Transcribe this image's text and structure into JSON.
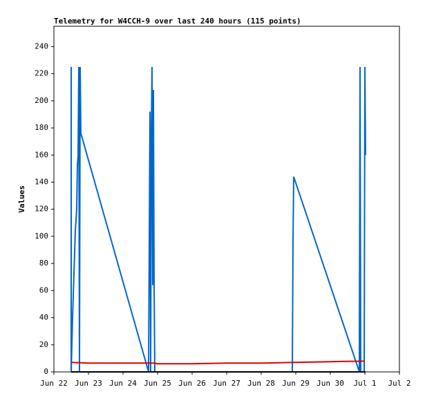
{
  "chart_data": {
    "type": "line",
    "title": "Telemetry for W4CCH-9 over last 240 hours (115 points)",
    "y_label": "Values",
    "xlim": [
      0,
      10
    ],
    "xticks": [
      {
        "value": 0,
        "label": "Jun 22"
      },
      {
        "value": 1,
        "label": "Jun 23"
      },
      {
        "value": 2,
        "label": "Jun 24"
      },
      {
        "value": 3,
        "label": "Jun 25"
      },
      {
        "value": 4,
        "label": "Jun 26"
      },
      {
        "value": 5,
        "label": "Jun 27"
      },
      {
        "value": 6,
        "label": "Jun 28"
      },
      {
        "value": 7,
        "label": "Jun 29"
      },
      {
        "value": 8,
        "label": "Jun 30"
      },
      {
        "value": 9,
        "label": "Jul 1"
      },
      {
        "value": 10,
        "label": "Jul 2"
      }
    ],
    "ylim": [
      0,
      255
    ],
    "yticks": [
      0,
      20,
      40,
      60,
      80,
      100,
      120,
      140,
      160,
      180,
      200,
      220,
      240
    ],
    "series": [
      {
        "color": "#0066cc",
        "x": [
          0.5,
          0.5,
          0.5,
          0.5,
          0.54,
          0.58,
          0.62,
          0.66,
          0.68,
          0.7,
          0.72,
          0.74,
          0.76,
          0.78,
          2.74,
          2.78,
          2.8,
          2.82,
          2.84,
          2.86,
          2.88,
          2.9,
          2.92,
          6.9,
          6.92,
          6.94,
          8.84,
          8.86,
          8.88,
          8.98,
          9.0,
          9.02
        ],
        "values": [
          0,
          17,
          225,
          0,
          40,
          72,
          104,
          120,
          152,
          160,
          225,
          0,
          225,
          176,
          0,
          192,
          0,
          176,
          225,
          64,
          208,
          64,
          0,
          0,
          96,
          144,
          0,
          225,
          0,
          0,
          225,
          160
        ]
      },
      {
        "color": "#dd0000",
        "x": [
          0.5,
          1.0,
          2.0,
          2.9,
          3.0,
          4.0,
          5.0,
          6.0,
          7.0,
          8.0,
          9.0
        ],
        "values": [
          7,
          6.5,
          6.5,
          6.5,
          6,
          6,
          6.5,
          6.5,
          7,
          7.5,
          8
        ]
      },
      {
        "color": "#000000",
        "x": [
          0.5,
          9.02
        ],
        "values": [
          0,
          0
        ]
      }
    ]
  }
}
